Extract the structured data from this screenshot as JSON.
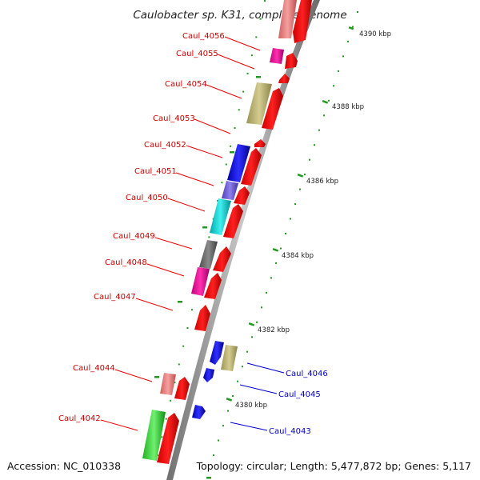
{
  "title": "Caulobacter sp. K31, complete genome",
  "accession": "Accession: NC_010338",
  "topology": "Topology: circular; Length: 5,477,872 bp; Genes: 5,117",
  "kbp_ticks": [
    "4380 kbp",
    "4382 kbp",
    "4384 kbp",
    "4386 kbp",
    "4388 kbp",
    "4390 kbp"
  ],
  "genes_left": [
    "Caul_4056",
    "Caul_4055",
    "Caul_4054",
    "Caul_4053",
    "Caul_4052",
    "Caul_4051",
    "Caul_4050",
    "Caul_4049",
    "Caul_4048",
    "Caul_4047",
    "Caul_4044",
    "Caul_4042"
  ],
  "genes_right": [
    "Caul_4046",
    "Caul_4045",
    "Caul_4043"
  ],
  "colors": {
    "backbone": "#888888",
    "cds": "#ff0000",
    "label_left": "#cc0000",
    "label_right": "#0000bb",
    "tick": "#229922"
  }
}
